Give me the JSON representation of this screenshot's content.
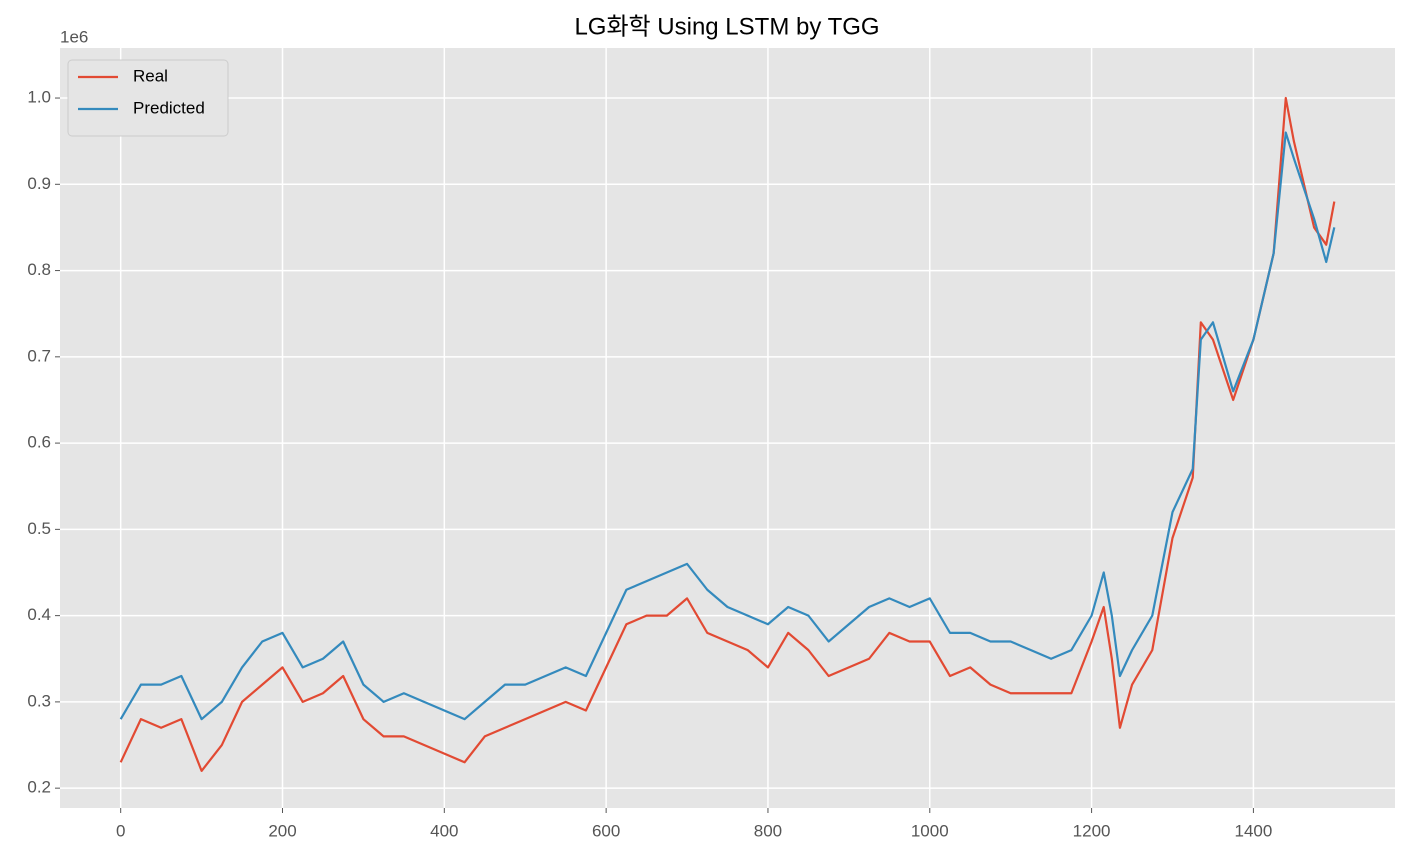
{
  "chart_data": {
    "type": "line",
    "title": "LG화학 Using LSTM by TGG",
    "y_offset_label": "1e6",
    "x": [
      0,
      25,
      50,
      75,
      100,
      125,
      150,
      175,
      200,
      225,
      250,
      275,
      300,
      325,
      350,
      375,
      400,
      425,
      450,
      475,
      500,
      525,
      550,
      575,
      600,
      625,
      650,
      675,
      700,
      725,
      750,
      775,
      800,
      825,
      850,
      875,
      900,
      925,
      950,
      975,
      1000,
      1025,
      1050,
      1075,
      1100,
      1125,
      1150,
      1175,
      1200,
      1215,
      1225,
      1235,
      1250,
      1275,
      1300,
      1325,
      1335,
      1350,
      1375,
      1400,
      1425,
      1440,
      1450,
      1475,
      1490,
      1500
    ],
    "series": [
      {
        "name": "Real",
        "color": "#e24a33",
        "values": [
          0.23,
          0.28,
          0.27,
          0.28,
          0.22,
          0.25,
          0.3,
          0.32,
          0.34,
          0.3,
          0.31,
          0.33,
          0.28,
          0.26,
          0.26,
          0.25,
          0.24,
          0.23,
          0.26,
          0.27,
          0.28,
          0.29,
          0.3,
          0.29,
          0.34,
          0.39,
          0.4,
          0.4,
          0.42,
          0.38,
          0.37,
          0.36,
          0.34,
          0.38,
          0.36,
          0.33,
          0.34,
          0.35,
          0.38,
          0.37,
          0.37,
          0.33,
          0.34,
          0.32,
          0.31,
          0.31,
          0.31,
          0.31,
          0.37,
          0.41,
          0.35,
          0.27,
          0.32,
          0.36,
          0.49,
          0.56,
          0.74,
          0.72,
          0.65,
          0.72,
          0.82,
          1.0,
          0.95,
          0.85,
          0.83,
          0.88
        ]
      },
      {
        "name": "Predicted",
        "color": "#348abd",
        "values": [
          0.28,
          0.32,
          0.32,
          0.33,
          0.28,
          0.3,
          0.34,
          0.37,
          0.38,
          0.34,
          0.35,
          0.37,
          0.32,
          0.3,
          0.31,
          0.3,
          0.29,
          0.28,
          0.3,
          0.32,
          0.32,
          0.33,
          0.34,
          0.33,
          0.38,
          0.43,
          0.44,
          0.45,
          0.46,
          0.43,
          0.41,
          0.4,
          0.39,
          0.41,
          0.4,
          0.37,
          0.39,
          0.41,
          0.42,
          0.41,
          0.42,
          0.38,
          0.38,
          0.37,
          0.37,
          0.36,
          0.35,
          0.36,
          0.4,
          0.45,
          0.4,
          0.33,
          0.36,
          0.4,
          0.52,
          0.57,
          0.72,
          0.74,
          0.66,
          0.72,
          0.82,
          0.96,
          0.93,
          0.86,
          0.81,
          0.85
        ]
      }
    ],
    "xlim": [
      -75,
      1575
    ],
    "ylim": [
      0.177,
      1.058
    ],
    "xticks": [
      0,
      200,
      400,
      600,
      800,
      1000,
      1200,
      1400
    ],
    "yticks": [
      0.2,
      0.3,
      0.4,
      0.5,
      0.6,
      0.7,
      0.8,
      0.9,
      {
        "value": 1,
        "label": "1.0"
      }
    ],
    "grid": true,
    "legend": "upper left"
  }
}
